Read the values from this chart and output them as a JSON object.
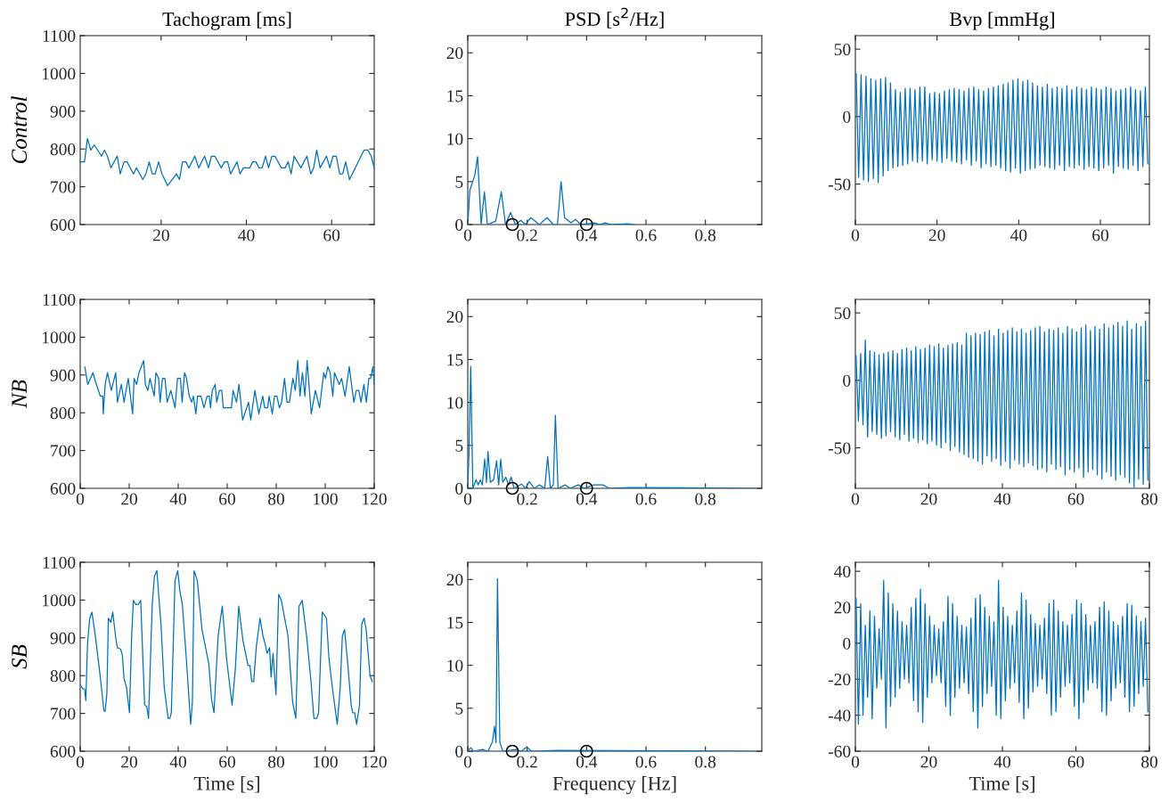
{
  "chart_data": [
    {
      "type": "line",
      "title": "Tachogram [ms]",
      "ylabel": "Control",
      "xlim": [
        1,
        70
      ],
      "ylim": [
        600,
        1100
      ],
      "xticks": [
        20,
        40,
        60
      ],
      "yticks": [
        600,
        700,
        800,
        900,
        1000,
        1100
      ],
      "series": [
        {
          "color": "#0072bd",
          "x": [
            1,
            2,
            2.7,
            3.5,
            4.3,
            6,
            6.7,
            7.4,
            8.2,
            9.7,
            10.4,
            11.3,
            12,
            13.5,
            14.2,
            15.7,
            16.4,
            17.2,
            17.9,
            18.6,
            19.4,
            20.2,
            21.5,
            23.6,
            24.3,
            25,
            25.8,
            26.5,
            27.9,
            28.8,
            30.2,
            31.1,
            31.8,
            32.6,
            34.1,
            34.9,
            35.6,
            36.3,
            37.8,
            38.5,
            39.3,
            40.8,
            41.5,
            42.2,
            43,
            43.7,
            44.5,
            45.2,
            46,
            46.7,
            48.2,
            49.1,
            49.8,
            50.5,
            51.2,
            52.8,
            54.2,
            55.1,
            55.8,
            56.5,
            57.3,
            58.8,
            59.6,
            60.3,
            61.1,
            61.9,
            62.6,
            63.3,
            64.2,
            67.6,
            68.5,
            69.3,
            70
          ],
          "values": [
            766,
            766,
            828,
            797,
            811,
            781,
            797,
            781,
            750,
            781,
            734,
            766,
            766,
            734,
            750,
            719,
            734,
            766,
            734,
            734,
            766,
            734,
            703,
            734,
            719,
            766,
            766,
            750,
            781,
            750,
            781,
            750,
            781,
            781,
            750,
            766,
            766,
            734,
            766,
            734,
            750,
            750,
            766,
            766,
            750,
            750,
            781,
            750,
            781,
            781,
            750,
            750,
            766,
            734,
            781,
            750,
            781,
            734,
            750,
            797,
            750,
            781,
            750,
            781,
            781,
            734,
            734,
            766,
            719,
            797,
            797,
            781,
            750
          ]
        }
      ]
    },
    {
      "type": "line",
      "title": "PSD [s$^{2}$/Hz]",
      "xlim": [
        0,
        0.99
      ],
      "ylim": [
        0,
        22
      ],
      "xticks": [
        0,
        0.2,
        0.4,
        0.6,
        0.8
      ],
      "yticks": [
        0,
        5,
        10,
        15,
        20
      ],
      "series": [
        {
          "color": "#0072bd",
          "x": [
            0,
            0.007,
            0.024,
            0.033,
            0.045,
            0.056,
            0.066,
            0.094,
            0.113,
            0.127,
            0.144,
            0.16,
            0.179,
            0.194,
            0.212,
            0.241,
            0.267,
            0.288,
            0.302,
            0.314,
            0.326,
            0.347,
            0.363,
            0.38,
            0.427,
            0.444,
            0.462,
            0.484,
            0.536,
            0.562
          ],
          "values": [
            0,
            4,
            5.8,
            7.9,
            0,
            3.8,
            0,
            0.4,
            3.8,
            0,
            1.4,
            0,
            0.5,
            0,
            0.8,
            0,
            0.8,
            0,
            0,
            5,
            0.8,
            0.2,
            0.6,
            0,
            0.2,
            0,
            0.2,
            0,
            0.1,
            0
          ]
        },
        {
          "type": "scatter",
          "marker": "circle",
          "color": "#000000",
          "x": [
            0.15,
            0.4
          ],
          "values": [
            0,
            0
          ]
        }
      ]
    },
    {
      "type": "line",
      "title": "Bvp [mmHg]",
      "xlim": [
        0,
        72
      ],
      "ylim": [
        -80,
        60
      ],
      "xticks": [
        0,
        20,
        40,
        60
      ],
      "yticks": [
        -50,
        0,
        50
      ],
      "series": [
        {
          "color": "#0072bd",
          "x": [
            0.2,
            0.8,
            1.4,
            2,
            2.6,
            3.2,
            3.8,
            4.4,
            5,
            5.6,
            6.2,
            6.8,
            7.4,
            8,
            8.6,
            9.2,
            9.8,
            10.4,
            11,
            11.6,
            12.2,
            12.8,
            13.4,
            14,
            14.6,
            15.2,
            15.8,
            16.4,
            17,
            17.6,
            18.2,
            18.8,
            19.4,
            20,
            20.6,
            21.2,
            21.8,
            22.4,
            23,
            23.6,
            24.2,
            24.8,
            25.4,
            26,
            26.6,
            27.2,
            27.8,
            28.4,
            29,
            29.6,
            30.2,
            30.8,
            31.4,
            32,
            32.6,
            33.2,
            33.8,
            34.4,
            35,
            35.6,
            36.2,
            36.8,
            37.4,
            38,
            38.6,
            39.2,
            39.8,
            40.4,
            41,
            41.6,
            42.2,
            42.8,
            43.4,
            44,
            44.6,
            45.2,
            45.8,
            46.4,
            47,
            47.6,
            48.2,
            48.8,
            49.4,
            50,
            50.6,
            51.2,
            51.8,
            52.4,
            53,
            53.6,
            54.2,
            54.8,
            55.4,
            56,
            56.6,
            57.2,
            57.8,
            58.4,
            59,
            59.6,
            60.2,
            60.8,
            61.4,
            62,
            62.6,
            63.2,
            63.8,
            64.4,
            65,
            65.6,
            66.2,
            66.8,
            67.4,
            68,
            68.6,
            69.2,
            69.8,
            70.4,
            71,
            71.6
          ],
          "values": [
            32,
            -45,
            31,
            -47,
            30,
            -48,
            28,
            -46,
            27,
            -49,
            28,
            -44,
            29,
            -40,
            25,
            -38,
            20,
            -37,
            18,
            -36,
            21,
            -35,
            21,
            -33,
            20,
            -34,
            22,
            -33,
            22,
            -35,
            17,
            -32,
            18,
            -33,
            17,
            -34,
            19,
            -31,
            20,
            -33,
            21,
            -34,
            20,
            -35,
            19,
            -32,
            21,
            -36,
            22,
            -33,
            20,
            -38,
            19,
            -35,
            21,
            -37,
            22,
            -36,
            23,
            -38,
            24,
            -40,
            25,
            -41,
            27,
            -38,
            28,
            -42,
            26,
            -40,
            27,
            -39,
            25,
            -38,
            23,
            -36,
            22,
            -37,
            24,
            -38,
            21,
            -39,
            22,
            -36,
            21,
            -40,
            23,
            -37,
            20,
            -38,
            22,
            -36,
            21,
            -39,
            20,
            -37,
            22,
            -38,
            21,
            -40,
            20,
            -38,
            22,
            -36,
            21,
            -42,
            19,
            -37,
            20,
            -38,
            21,
            -39,
            22,
            -36,
            20,
            -40,
            19,
            -37,
            22,
            -35
          ]
        }
      ]
    },
    {
      "type": "line",
      "ylabel": "NB",
      "xlim": [
        0,
        120
      ],
      "ylim": [
        600,
        1100
      ],
      "xticks": [
        0,
        20,
        40,
        60,
        80,
        100,
        120
      ],
      "yticks": [
        600,
        700,
        800,
        900,
        1000,
        1100
      ],
      "series": [
        {
          "color": "#0072bd",
          "x": [
            1.9,
            3.1,
            5.2,
            6.2,
            8.2,
            9.2,
            9.4,
            10.2,
            11.1,
            12.7,
            14.5,
            15.2,
            16.8,
            17.9,
            19.6,
            21.4,
            22,
            23,
            24,
            25.9,
            26.6,
            27.6,
            28.5,
            30.2,
            30.9,
            32,
            32.6,
            33.6,
            34.6,
            35.5,
            37,
            38.7,
            39.7,
            40.9,
            41.6,
            42.6,
            43.4,
            44.5,
            45.5,
            46.2,
            47.2,
            47.9,
            49.3,
            50.5,
            51.8,
            52.7,
            53.2,
            53.9,
            55.1,
            55.7,
            56.8,
            57.8,
            58.4,
            61.7,
            62.4,
            63.8,
            64.8,
            66.3,
            68.7,
            69.6,
            71.3,
            72.9,
            74.5,
            75.3,
            76.5,
            77.1,
            78.4,
            79.3,
            80.3,
            81.3,
            82.2,
            83.4,
            84.4,
            85.4,
            86.8,
            87.8,
            88.8,
            89.7,
            90.7,
            91.7,
            92.6,
            94.3,
            96,
            97.7,
            99.4,
            100.1,
            101.1,
            102,
            103.1,
            103.8,
            105.7,
            106.7,
            108.1,
            109.8,
            111.7,
            112.7,
            113.7,
            114.6,
            115.8,
            116.8,
            117.8,
            118.5,
            119.5,
            120
          ],
          "values": [
            921,
            875,
            906,
            883,
            844,
            844,
            797,
            875,
            906,
            859,
            906,
            828,
            875,
            828,
            891,
            797,
            891,
            875,
            906,
            938,
            875,
            859,
            891,
            844,
            906,
            891,
            828,
            891,
            891,
            828,
            859,
            813,
            891,
            891,
            828,
            906,
            891,
            844,
            828,
            844,
            797,
            844,
            844,
            813,
            844,
            844,
            813,
            859,
            875,
            828,
            859,
            859,
            813,
            813,
            859,
            828,
            875,
            781,
            828,
            781,
            859,
            797,
            844,
            813,
            813,
            844,
            797,
            844,
            844,
            813,
            828,
            891,
            828,
            828,
            891,
            859,
            938,
            844,
            906,
            844,
            938,
            797,
            859,
            813,
            906,
            891,
            922,
            906,
            844,
            906,
            875,
            891,
            844,
            922,
            828,
            859,
            859,
            828,
            875,
            828,
            891,
            891,
            922,
            875
          ]
        }
      ]
    },
    {
      "type": "line",
      "xlim": [
        0,
        0.99
      ],
      "ylim": [
        0,
        22
      ],
      "xticks": [
        0,
        0.2,
        0.4,
        0.6,
        0.8
      ],
      "yticks": [
        0,
        5,
        10,
        15,
        20
      ],
      "series": [
        {
          "color": "#0072bd",
          "x": [
            0,
            0.005,
            0.01,
            0.017,
            0.028,
            0.035,
            0.042,
            0.049,
            0.057,
            0.063,
            0.068,
            0.076,
            0.087,
            0.097,
            0.104,
            0.111,
            0.118,
            0.128,
            0.137,
            0.146,
            0.156,
            0.181,
            0.194,
            0.207,
            0.224,
            0.241,
            0.259,
            0.269,
            0.278,
            0.288,
            0.295,
            0.304,
            0.328,
            0.345,
            0.372,
            0.392,
            0.424,
            0.455,
            0.476,
            0.545,
            0.97
          ],
          "values": [
            0,
            5.2,
            14.2,
            0,
            1,
            0.4,
            1,
            0.4,
            3.4,
            0.7,
            4.3,
            0.7,
            1,
            3.2,
            0.4,
            3.4,
            0.7,
            1.3,
            0.4,
            1.3,
            0,
            0.5,
            0,
            0.8,
            0,
            0.4,
            0,
            3.7,
            0,
            0.4,
            8.5,
            0,
            0.4,
            0,
            0.4,
            0,
            0.4,
            0.4,
            0,
            0.1,
            0
          ]
        },
        {
          "type": "scatter",
          "marker": "circle",
          "color": "#000000",
          "x": [
            0.15,
            0.4
          ],
          "values": [
            0,
            0
          ]
        }
      ]
    },
    {
      "type": "line",
      "xlim": [
        0,
        80
      ],
      "ylim": [
        -80,
        60
      ],
      "xticks": [
        0,
        20,
        40,
        60,
        80
      ],
      "yticks": [
        -50,
        0,
        50
      ],
      "series": [
        {
          "color": "#0072bd",
          "x": [
            0.2,
            0.825,
            1.45,
            2.075,
            2.7,
            3.325,
            3.95,
            4.575,
            5.2,
            5.825,
            6.45,
            7.075,
            7.7,
            8.325,
            8.95,
            9.575,
            10.2,
            10.825,
            11.45,
            12.075,
            12.7,
            13.325,
            13.95,
            14.575,
            15.2,
            15.825,
            16.45,
            17.075,
            17.7,
            18.325,
            18.95,
            19.575,
            20.2,
            20.825,
            21.45,
            22.075,
            22.7,
            23.325,
            23.95,
            24.575,
            25.2,
            25.825,
            26.45,
            27.075,
            27.7,
            28.325,
            28.95,
            29.575,
            30.2,
            30.825,
            31.45,
            32.075,
            32.7,
            33.325,
            33.95,
            34.575,
            35.2,
            35.825,
            36.45,
            37.075,
            37.7,
            38.325,
            38.95,
            39.575,
            40.2,
            40.825,
            41.45,
            42.075,
            42.7,
            43.325,
            43.95,
            44.575,
            45.2,
            45.825,
            46.45,
            47.075,
            47.7,
            48.325,
            48.95,
            49.575,
            50.2,
            50.825,
            51.45,
            52.075,
            52.7,
            53.325,
            53.95,
            54.575,
            55.2,
            55.825,
            56.45,
            57.075,
            57.7,
            58.325,
            58.95,
            59.575,
            60.2,
            60.825,
            61.45,
            62.075,
            62.7,
            63.325,
            63.95,
            64.575,
            65.2,
            65.825,
            66.45,
            67.075,
            67.7,
            68.325,
            68.95,
            69.575,
            70.2,
            70.825,
            71.45,
            72.075,
            72.7,
            73.325,
            73.95,
            74.575,
            75.2,
            75.825,
            76.45,
            77.075,
            77.7,
            78.325,
            78.95,
            79.575
          ],
          "values": [
            18,
            -30,
            20,
            -33,
            30,
            -42,
            22,
            -38,
            21,
            -40,
            19,
            -43,
            20,
            -41,
            21,
            -38,
            22,
            -42,
            20,
            -44,
            23,
            -40,
            24,
            -45,
            22,
            -43,
            25,
            -46,
            23,
            -44,
            24,
            -47,
            26,
            -45,
            25,
            -48,
            27,
            -50,
            24,
            -46,
            26,
            -52,
            27,
            -49,
            28,
            -53,
            26,
            -55,
            35,
            -57,
            33,
            -58,
            35,
            -60,
            34,
            -62,
            36,
            -56,
            37,
            -60,
            33,
            -58,
            38,
            -63,
            35,
            -60,
            37,
            -65,
            39,
            -59,
            36,
            -62,
            38,
            -64,
            35,
            -61,
            37,
            -63,
            39,
            -66,
            40,
            -65,
            36,
            -68,
            38,
            -62,
            37,
            -66,
            39,
            -64,
            35,
            -70,
            40,
            -66,
            38,
            -68,
            36,
            -65,
            39,
            -72,
            41,
            -68,
            37,
            -66,
            40,
            -70,
            38,
            -73,
            42,
            -68,
            39,
            -71,
            41,
            -74,
            43,
            -70,
            40,
            -72,
            44,
            -76,
            38,
            -79,
            42,
            -73,
            40,
            -77,
            44,
            -74
          ]
        }
      ]
    },
    {
      "type": "line",
      "ylabel": "SB",
      "xlabel": "Time [s]",
      "xlim": [
        0,
        120
      ],
      "ylim": [
        600,
        1100
      ],
      "xticks": [
        0,
        20,
        40,
        60,
        80,
        100,
        120
      ],
      "yticks": [
        600,
        700,
        800,
        900,
        1000,
        1100
      ],
      "series": [
        {
          "color": "#0072bd",
          "x": [
            0,
            1,
            1.8,
            2.3,
            3,
            3.9,
            4.8,
            6.4,
            8,
            9.7,
            10.2,
            10.9,
            11.5,
            12.5,
            13.3,
            14.5,
            15.2,
            16.5,
            17.2,
            17.9,
            18.9,
            20.1,
            21,
            21.7,
            22.7,
            23.6,
            24.7,
            26.3,
            27.2,
            27.9,
            29.4,
            30.3,
            31.3,
            33,
            34.3,
            35.9,
            36.6,
            37.2,
            38.7,
            39.8,
            40.7,
            41.7,
            43.3,
            45.1,
            45.8,
            46.5,
            47.8,
            49.7,
            52.5,
            53.6,
            54.6,
            56.3,
            58,
            59.7,
            62,
            63.3,
            64.7,
            66.4,
            68.5,
            69.3,
            70,
            70.8,
            71.9,
            73.4,
            74.6,
            75.4,
            76.3,
            77.3,
            77.9,
            78.7,
            79.9,
            81,
            82.1,
            84.8,
            86.7,
            88,
            89.3,
            90.6,
            92.4,
            94.2,
            95.4,
            96.6,
            97.3,
            98.8,
            100.5,
            101.5,
            102.9,
            104.9,
            106.1,
            107,
            107.9,
            109.2,
            110.6,
            111.2,
            112,
            112.8,
            114,
            114.9,
            115.9,
            116.7,
            118.3,
            119.2
          ],
          "values": [
            775,
            766,
            764,
            734,
            886,
            952,
            968,
            894,
            808,
            706,
            706,
            753,
            952,
            941,
            968,
            900,
            874,
            870,
            855,
            792,
            769,
            702,
            905,
            999,
            988,
            988,
            999,
            722,
            718,
            687,
            988,
            1063,
            1078,
            933,
            769,
            687,
            687,
            702,
            1052,
            1078,
            1023,
            988,
            847,
            671,
            730,
            1078,
            1052,
            922,
            831,
            738,
            702,
            905,
            984,
            847,
            722,
            816,
            984,
            894,
            827,
            827,
            784,
            784,
            878,
            952,
            905,
            886,
            859,
            874,
            796,
            859,
            749,
            1015,
            999,
            905,
            730,
            687,
            984,
            999,
            905,
            784,
            687,
            687,
            702,
            968,
            952,
            847,
            769,
            671,
            766,
            905,
            922,
            831,
            722,
            702,
            702,
            671,
            722,
            937,
            952,
            922,
            800,
            784
          ]
        }
      ]
    },
    {
      "type": "line",
      "xlabel": "Frequency [Hz]",
      "xlim": [
        0,
        0.99
      ],
      "ylim": [
        0,
        22
      ],
      "xticks": [
        0,
        0.2,
        0.4,
        0.6,
        0.8
      ],
      "yticks": [
        0,
        5,
        10,
        15,
        20
      ],
      "series": [
        {
          "color": "#0072bd",
          "x": [
            0,
            0.01,
            0.02,
            0.05,
            0.068,
            0.083,
            0.09,
            0.095,
            0.1,
            0.108,
            0.118,
            0.163,
            0.181,
            0.198,
            0.215,
            0.302,
            0.97
          ],
          "values": [
            0,
            0.4,
            0,
            0.2,
            0,
            1.1,
            2.9,
            1,
            20.1,
            1,
            0,
            0.2,
            0,
            0.5,
            0,
            0.1,
            0
          ]
        },
        {
          "type": "scatter",
          "marker": "circle",
          "color": "#000000",
          "x": [
            0.15,
            0.4
          ],
          "values": [
            0,
            0
          ]
        }
      ]
    },
    {
      "type": "line",
      "xlabel": "Time [s]",
      "xlim": [
        0,
        80
      ],
      "ylim": [
        -60,
        45
      ],
      "xticks": [
        0,
        20,
        40,
        60,
        80
      ],
      "yticks": [
        -60,
        -40,
        -20,
        0,
        20,
        40
      ],
      "series": [
        {
          "color": "#0072bd",
          "x": [
            0.2,
            0.825,
            1.45,
            2.075,
            2.7,
            3.325,
            3.95,
            4.575,
            5.2,
            5.825,
            6.45,
            7.075,
            7.7,
            8.325,
            8.95,
            9.575,
            10.2,
            10.825,
            11.45,
            12.075,
            12.7,
            13.325,
            13.95,
            14.575,
            15.2,
            15.825,
            16.45,
            17.075,
            17.7,
            18.325,
            18.95,
            19.575,
            20.2,
            20.825,
            21.45,
            22.075,
            22.7,
            23.325,
            23.95,
            24.575,
            25.2,
            25.825,
            26.45,
            27.075,
            27.7,
            28.325,
            28.95,
            29.575,
            30.2,
            30.825,
            31.45,
            32.075,
            32.7,
            33.325,
            33.95,
            34.575,
            35.2,
            35.825,
            36.45,
            37.075,
            37.7,
            38.325,
            38.95,
            39.575,
            40.2,
            40.825,
            41.45,
            42.075,
            42.7,
            43.325,
            43.95,
            44.575,
            45.2,
            45.825,
            46.45,
            47.075,
            47.7,
            48.325,
            48.95,
            49.575,
            50.2,
            50.825,
            51.45,
            52.075,
            52.7,
            53.325,
            53.95,
            54.575,
            55.2,
            55.825,
            56.45,
            57.075,
            57.7,
            58.325,
            58.95,
            59.575,
            60.2,
            60.825,
            61.45,
            62.075,
            62.7,
            63.325,
            63.95,
            64.575,
            65.2,
            65.825,
            66.45,
            67.075,
            67.7,
            68.325,
            68.95,
            69.575,
            70.2,
            70.825,
            71.45,
            72.075,
            72.7,
            73.325,
            73.95,
            74.575,
            75.2,
            75.825,
            76.45,
            77.075,
            77.7,
            78.325,
            78.95,
            79.575
          ],
          "values": [
            25,
            -45,
            22,
            -40,
            10,
            -30,
            18,
            -42,
            15,
            -25,
            8,
            -20,
            35,
            -47,
            28,
            -35,
            22,
            -30,
            18,
            -25,
            12,
            -20,
            10,
            -22,
            20,
            -32,
            25,
            -38,
            30,
            -44,
            22,
            -30,
            15,
            -22,
            10,
            -18,
            8,
            -22,
            12,
            -35,
            26,
            -40,
            22,
            -30,
            15,
            -25,
            10,
            -22,
            9,
            -28,
            14,
            -38,
            25,
            -47,
            27,
            -35,
            20,
            -28,
            15,
            -24,
            12,
            -40,
            35,
            -42,
            20,
            -32,
            15,
            -25,
            10,
            -22,
            18,
            -33,
            28,
            -42,
            24,
            -36,
            16,
            -27,
            11,
            -24,
            10,
            -20,
            14,
            -28,
            22,
            -40,
            24,
            -38,
            18,
            -30,
            12,
            -24,
            10,
            -22,
            16,
            -35,
            24,
            -42,
            22,
            -33,
            16,
            -26,
            10,
            -22,
            12,
            -25,
            20,
            -38,
            23,
            -40,
            18,
            -32,
            12,
            -25,
            10,
            -22,
            15,
            -30,
            22,
            -38,
            21,
            -35,
            15,
            -28,
            12,
            -24,
            14,
            -38
          ]
        }
      ]
    }
  ]
}
